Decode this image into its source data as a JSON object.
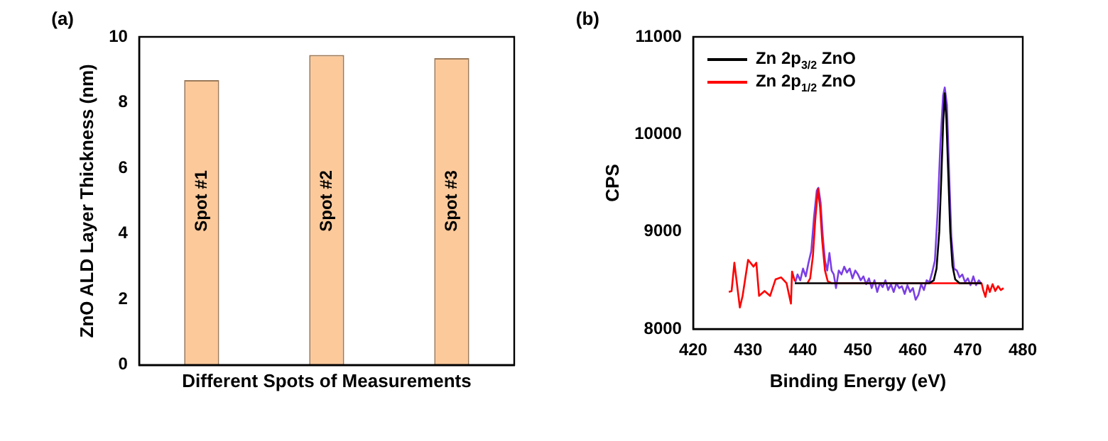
{
  "chart_data": [
    {
      "type": "bar",
      "title": "(a)",
      "xlabel": "Different Spots of Measurements",
      "ylabel": "ZnO ALD Layer Thickness (nm)",
      "categories": [
        "Spot #1",
        "Spot #2",
        "Spot #3"
      ],
      "values": [
        8.68,
        9.45,
        9.35
      ],
      "color": "#fcc99b",
      "ylim": [
        0,
        10
      ],
      "yticks": [
        0,
        2,
        4,
        6,
        8,
        10
      ],
      "tick_labels": "y",
      "grid": false,
      "legend": false
    },
    {
      "type": "line",
      "title": "(b)",
      "xlabel": "Binding Energy (eV)",
      "ylabel": "CPS",
      "xlim": [
        420,
        480
      ],
      "xticks": [
        420,
        430,
        440,
        450,
        460,
        470,
        480
      ],
      "ylim": [
        8000,
        11000
      ],
      "yticks": [
        8000,
        9000,
        10000,
        11000
      ],
      "grid": false,
      "legend": "top left",
      "marker": "none",
      "line_style": "solid",
      "series": [
        {
          "name": "Zn 2p$_{3/2}$ ZnO",
          "color": "#000000",
          "x": [
            438.5,
            445,
            463,
            463.8,
            464.3,
            464.8,
            465.2,
            465.5,
            465.8,
            466.1,
            466.4,
            466.8,
            467.2,
            467.7,
            468.5,
            472.5
          ],
          "values": [
            8470,
            8470,
            8470,
            8500,
            8620,
            9000,
            9600,
            10100,
            10420,
            10150,
            9650,
            9000,
            8650,
            8510,
            8470,
            8470
          ]
        },
        {
          "name": "Zn 2p$_{1/2}$ ZnO",
          "color": "#ff0000",
          "x": [
            426.5,
            427,
            427.5,
            428.5,
            429,
            430,
            431,
            431.5,
            432,
            433,
            434,
            435,
            436,
            437,
            437.8,
            438,
            438.5,
            439,
            440.8,
            441.3,
            441.8,
            442.2,
            442.7,
            443.1,
            443.5,
            444,
            444.5,
            445.2,
            472.5,
            472.8,
            473.2,
            473.6,
            474,
            474.5,
            475,
            475.5,
            476,
            476.5
          ],
          "values": [
            8380,
            8390,
            8680,
            8220,
            8340,
            8710,
            8640,
            8680,
            8340,
            8390,
            8340,
            8510,
            8530,
            8470,
            8260,
            8590,
            8490,
            null,
            8470,
            8520,
            8750,
            9100,
            9440,
            9250,
            8900,
            8600,
            8490,
            8470,
            8470,
            8400,
            8330,
            8450,
            8380,
            8460,
            8390,
            8440,
            8400,
            8420
          ]
        },
        {
          "color": "#7b3fe4",
          "x": [
            438.6,
            439,
            439.5,
            440,
            440.5,
            441,
            441.5,
            442,
            442.5,
            442.8,
            443.2,
            443.6,
            444,
            444.4,
            444.8,
            445.2,
            445.6,
            446,
            446.5,
            447,
            447.5,
            448,
            448.5,
            449,
            449.5,
            450,
            450.5,
            451,
            451.5,
            452,
            452.5,
            453,
            453.5,
            454,
            454.5,
            455,
            455.5,
            456,
            456.5,
            457,
            457.5,
            458,
            458.5,
            459,
            459.5,
            460,
            460.5,
            461,
            461.5,
            462,
            462.5,
            463,
            463.5,
            464,
            464.5,
            465,
            465.5,
            465.8,
            466.2,
            466.6,
            467,
            467.5,
            468,
            468.5,
            469,
            469.5,
            470,
            470.5,
            471,
            471.5,
            472,
            472.5
          ],
          "values": [
            8480,
            8560,
            8500,
            8620,
            8540,
            8680,
            8800,
            9150,
            9420,
            9450,
            9300,
            8950,
            8700,
            8600,
            8780,
            8600,
            8560,
            8420,
            8600,
            8560,
            8640,
            8580,
            8620,
            8520,
            8600,
            8560,
            8500,
            8540,
            8460,
            8520,
            8420,
            8500,
            8380,
            8470,
            8430,
            8500,
            8400,
            8460,
            8380,
            8470,
            8420,
            8440,
            8360,
            8450,
            8380,
            8420,
            8300,
            8350,
            8460,
            8400,
            8500,
            8480,
            8580,
            8700,
            9200,
            9900,
            10400,
            10480,
            10300,
            9600,
            8950,
            8620,
            8600,
            8530,
            8560,
            8480,
            8520,
            8450,
            8540,
            8450,
            8500,
            8460
          ]
        }
      ]
    }
  ]
}
